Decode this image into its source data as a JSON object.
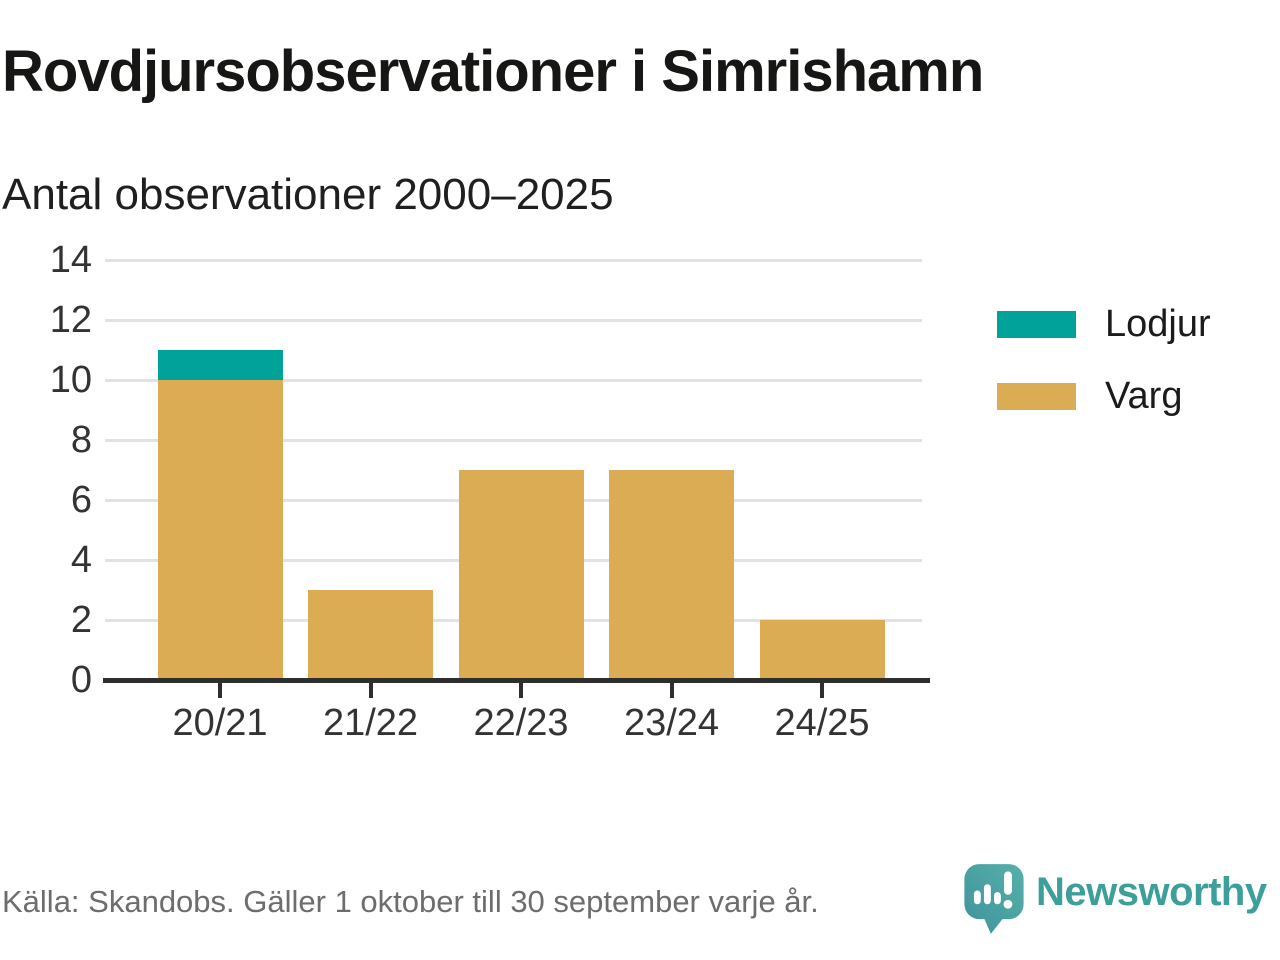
{
  "title": "Rovdjursobservationer i Simrishamn",
  "subtitle": "Antal observationer 2000–2025",
  "footer": {
    "source": "Källa: Skandobs. Gäller 1 oktober till 30 september varje år.",
    "brand": "Newsworthy"
  },
  "colors": {
    "lodjur": "#00a29a",
    "varg": "#dcac55",
    "brand": "#3d9f99",
    "brand_bubble_light": "#55b0aa",
    "brand_bubble_dark": "#3f939b",
    "grid": "#e2e2e2",
    "axis": "#2e2e2e",
    "tick_text": "#333333",
    "muted_text": "#6d6d6d"
  },
  "chart_data": {
    "type": "bar",
    "stacked": true,
    "title": "Rovdjursobservationer i Simrishamn",
    "subtitle": "Antal observationer 2000–2025",
    "categories": [
      "20/21",
      "21/22",
      "22/23",
      "23/24",
      "24/25"
    ],
    "series": [
      {
        "name": "Varg",
        "color_key": "varg",
        "values": [
          10,
          3,
          7,
          7,
          2
        ]
      },
      {
        "name": "Lodjur",
        "color_key": "lodjur",
        "values": [
          1,
          0,
          0,
          0,
          0
        ]
      }
    ],
    "totals": [
      11,
      3,
      7,
      7,
      2
    ],
    "xlabel": "",
    "ylabel": "",
    "ylim": [
      0,
      14
    ],
    "ytick_step": 2,
    "yticks": [
      0,
      2,
      4,
      6,
      8,
      10,
      12,
      14
    ],
    "grid": true,
    "legend": [
      "Lodjur",
      "Varg"
    ],
    "legend_position": "right"
  }
}
